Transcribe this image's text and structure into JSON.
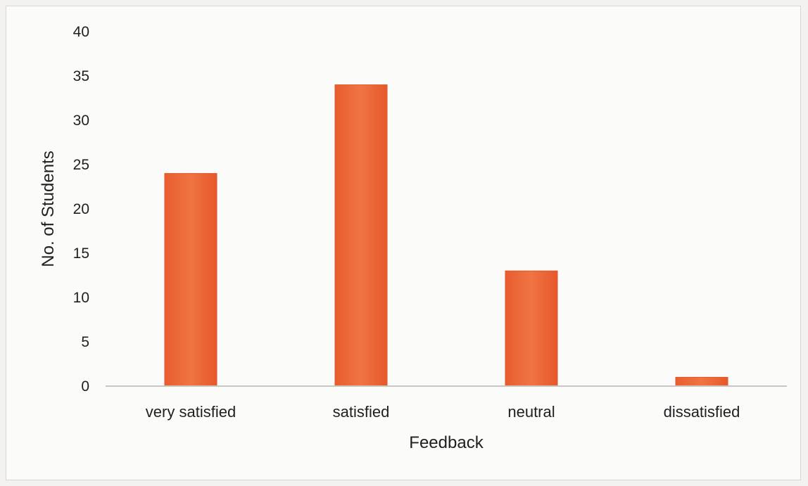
{
  "chart_data": {
    "type": "bar",
    "title": "",
    "xlabel": "Feedback",
    "ylabel": "No. of Students",
    "categories": [
      "very satisfied",
      "satisfied",
      "neutral",
      "dissatisfied"
    ],
    "values": [
      24,
      34,
      13,
      1
    ],
    "ylim": [
      0,
      40
    ],
    "yticks": [
      0,
      5,
      10,
      15,
      20,
      25,
      30,
      35,
      40
    ],
    "grid": false,
    "legend": "none",
    "colors": {
      "bar": "#ec6a3c",
      "bar_edge": "#e2572a",
      "axis": "#c9c5c0",
      "text": "#1f1f1f"
    }
  }
}
